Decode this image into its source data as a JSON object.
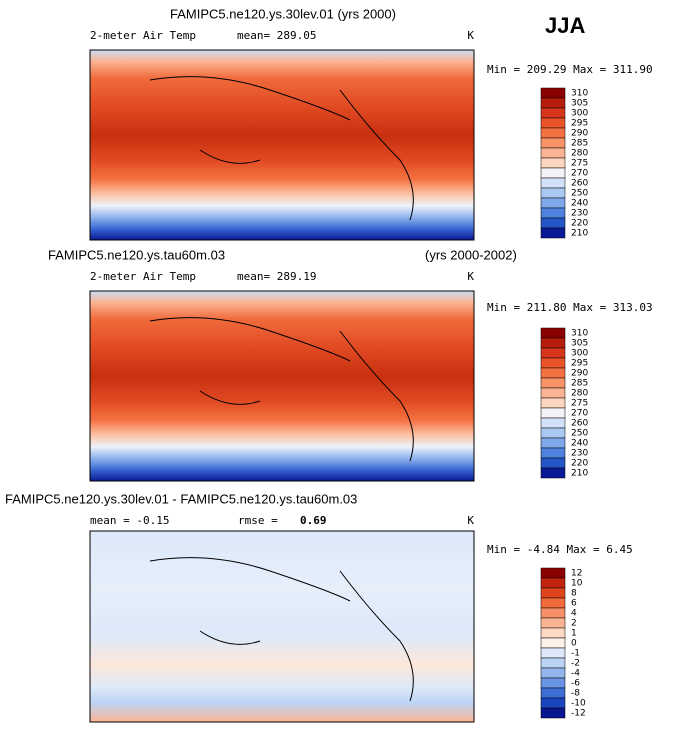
{
  "season": "JJA",
  "panels": [
    {
      "title": "FAMIPC5.ne120.ys.30lev.01 (yrs 2000)",
      "variable": "2-meter Air Temp",
      "mean": "mean= 289.05",
      "units": "K",
      "range": "Min = 209.29 Max = 311.90",
      "colorbar": [
        {
          "label": "310",
          "color": "#8b0000"
        },
        {
          "label": "305",
          "color": "#b81c0c"
        },
        {
          "label": "300",
          "color": "#d8361a"
        },
        {
          "label": "295",
          "color": "#ea5228"
        },
        {
          "label": "290",
          "color": "#f47242"
        },
        {
          "label": "285",
          "color": "#f89468"
        },
        {
          "label": "280",
          "color": "#fbb493"
        },
        {
          "label": "275",
          "color": "#fdd6c2"
        },
        {
          "label": "270",
          "color": "#f4f4f8"
        },
        {
          "label": "260",
          "color": "#d2e2f8"
        },
        {
          "label": "250",
          "color": "#aac8f2"
        },
        {
          "label": "240",
          "color": "#7ea8ea"
        },
        {
          "label": "230",
          "color": "#4f82dc"
        },
        {
          "label": "220",
          "color": "#2556c8"
        },
        {
          "label": "210",
          "color": "#0a1a96"
        }
      ]
    },
    {
      "title": "FAMIPC5.ne120.ys.tau60m.03",
      "years": "(yrs 2000-2002)",
      "variable": "2-meter Air Temp",
      "mean": "mean= 289.19",
      "units": "K",
      "range": "Min = 211.80 Max = 313.03",
      "colorbar": [
        {
          "label": "310",
          "color": "#8b0000"
        },
        {
          "label": "305",
          "color": "#b81c0c"
        },
        {
          "label": "300",
          "color": "#d8361a"
        },
        {
          "label": "295",
          "color": "#ea5228"
        },
        {
          "label": "290",
          "color": "#f47242"
        },
        {
          "label": "285",
          "color": "#f89468"
        },
        {
          "label": "280",
          "color": "#fbb493"
        },
        {
          "label": "275",
          "color": "#fdd6c2"
        },
        {
          "label": "270",
          "color": "#f4f4f8"
        },
        {
          "label": "260",
          "color": "#d2e2f8"
        },
        {
          "label": "250",
          "color": "#aac8f2"
        },
        {
          "label": "240",
          "color": "#7ea8ea"
        },
        {
          "label": "230",
          "color": "#4f82dc"
        },
        {
          "label": "220",
          "color": "#2556c8"
        },
        {
          "label": "210",
          "color": "#0a1a96"
        }
      ]
    },
    {
      "title": "FAMIPC5.ne120.ys.30lev.01 - FAMIPC5.ne120.ys.tau60m.03",
      "mean": "mean =  -0.15",
      "rmse_label": "rmse =",
      "rmse": "0.69",
      "units": "K",
      "range": "Min =  -4.84 Max =   6.45",
      "colorbar": [
        {
          "label": "12",
          "color": "#8b0000"
        },
        {
          "label": "10",
          "color": "#c0240e"
        },
        {
          "label": "8",
          "color": "#e0441f"
        },
        {
          "label": "6",
          "color": "#f06a3c"
        },
        {
          "label": "4",
          "color": "#f79066"
        },
        {
          "label": "2",
          "color": "#fbb594"
        },
        {
          "label": "1",
          "color": "#fdd8c4"
        },
        {
          "label": "0",
          "color": "#fdf0e6"
        },
        {
          "label": "-1",
          "color": "#dde9f9"
        },
        {
          "label": "-2",
          "color": "#bcd4f4"
        },
        {
          "label": "-4",
          "color": "#93b6ed"
        },
        {
          "label": "-6",
          "color": "#6894e3"
        },
        {
          "label": "-8",
          "color": "#3d6dd5"
        },
        {
          "label": "-10",
          "color": "#1b45bf"
        },
        {
          "label": "-12",
          "color": "#08168f"
        }
      ]
    }
  ]
}
